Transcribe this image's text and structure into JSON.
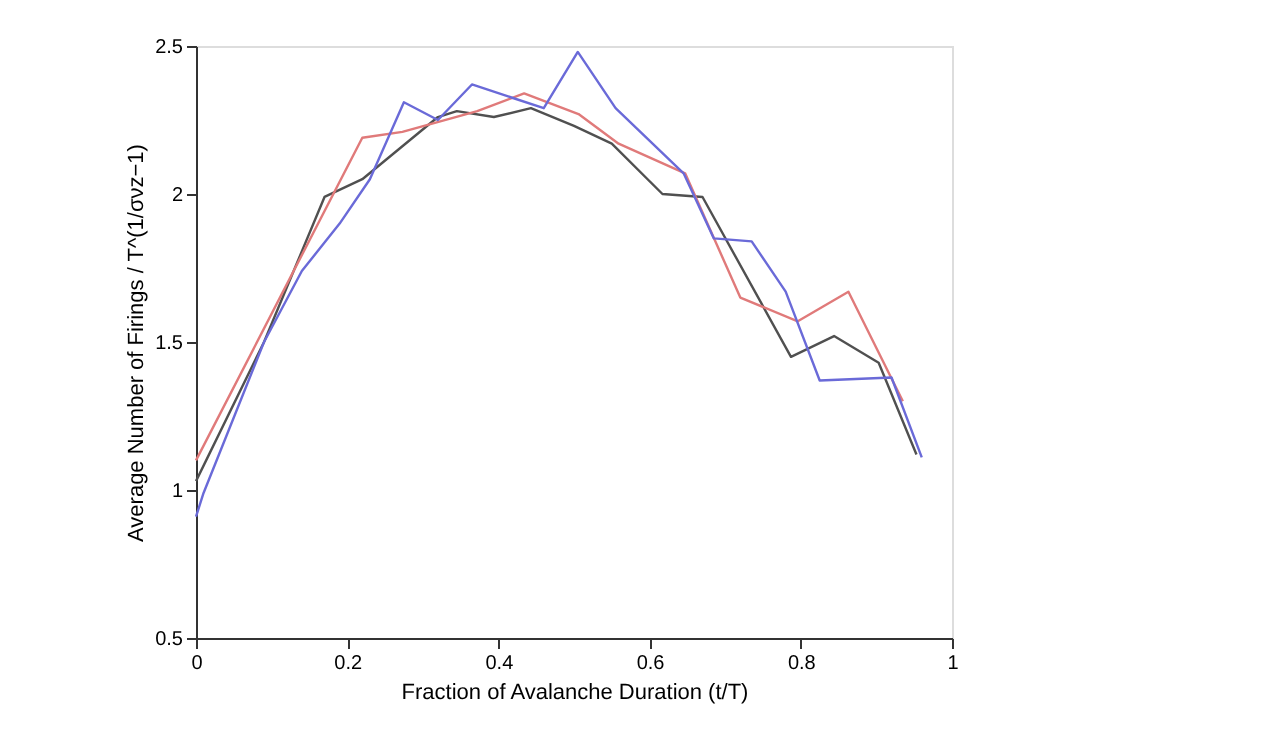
{
  "chart_data": {
    "type": "line",
    "xlabel": "Fraction of Avalanche Duration (t/T)",
    "ylabel": "Average Number of Firings / T^(1/σνz−1)",
    "xlim": [
      0,
      1
    ],
    "xticks": [
      0,
      0.2,
      0.4,
      0.6,
      0.8,
      1
    ],
    "ylim": [
      0.5,
      2.5
    ],
    "yticks": [
      0.5,
      1,
      1.5,
      2,
      2.5
    ],
    "grid": false,
    "legend": false,
    "marker": "none",
    "line_style": "solid",
    "series": [
      {
        "color": "#505050",
        "x": [
          0,
          0.09,
          0.17,
          0.22,
          0.32,
          0.345,
          0.394,
          0.443,
          0.5,
          0.55,
          0.617,
          0.67,
          0.787,
          0.844,
          0.903,
          0.953
        ],
        "values": [
          1.03,
          1.5,
          1.99,
          2.05,
          2.26,
          2.28,
          2.26,
          2.29,
          2.23,
          2.17,
          2.0,
          1.99,
          1.45,
          1.52,
          1.43,
          1.12
        ]
      },
      {
        "color": "#e07a7a",
        "x": [
          0,
          0.22,
          0.273,
          0.372,
          0.434,
          0.506,
          0.559,
          0.647,
          0.72,
          0.796,
          0.863,
          0.935
        ],
        "values": [
          1.1,
          2.19,
          2.21,
          2.28,
          2.34,
          2.27,
          2.17,
          2.07,
          1.65,
          1.57,
          1.67,
          1.3
        ]
      },
      {
        "color": "#6a6ad8",
        "x": [
          0,
          0.01,
          0.09,
          0.14,
          0.19,
          0.23,
          0.275,
          0.32,
          0.365,
          0.46,
          0.505,
          0.555,
          0.645,
          0.685,
          0.735,
          0.78,
          0.825,
          0.92,
          0.96
        ],
        "values": [
          0.91,
          0.99,
          1.5,
          1.74,
          1.9,
          2.05,
          2.31,
          2.25,
          2.37,
          2.29,
          2.48,
          2.29,
          2.07,
          1.85,
          1.84,
          1.67,
          1.37,
          1.38,
          1.11
        ]
      }
    ]
  }
}
